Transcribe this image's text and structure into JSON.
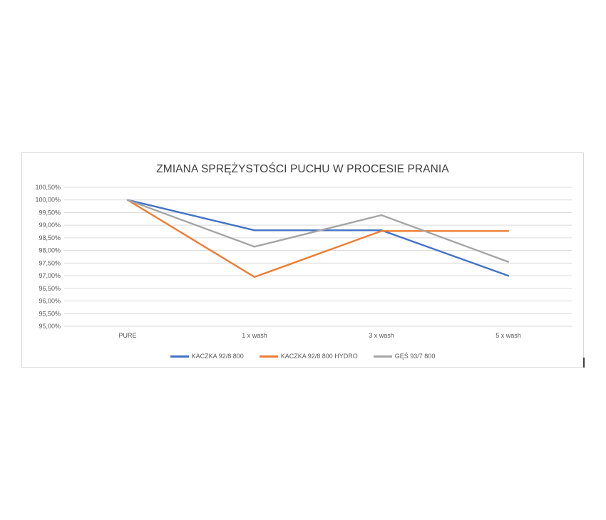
{
  "chart_data": {
    "type": "line",
    "title": "ZMIANA SPRĘŻYSTOŚCI PUCHU W PROCESIE PRANIA",
    "categories": [
      "PURE",
      "1 x wash",
      "3 x wash",
      "5 x wash"
    ],
    "ylim": [
      95.0,
      100.5
    ],
    "y_ticks": [
      100.5,
      100.0,
      99.5,
      99.0,
      98.5,
      98.0,
      97.5,
      97.0,
      96.5,
      96.0,
      95.5,
      95.0
    ],
    "y_tick_labels": [
      "100,50%",
      "100,00%",
      "99,50%",
      "99,00%",
      "98,50%",
      "98,00%",
      "97,50%",
      "97,00%",
      "96,50%",
      "96,00%",
      "95,50%",
      "95,00%"
    ],
    "grid": true,
    "legend_position": "bottom",
    "series": [
      {
        "name": "KACZKA 92/8 800",
        "color": "#4472c4",
        "values": [
          100.0,
          98.8,
          98.8,
          97.0
        ]
      },
      {
        "name": "KACZKA 92/8 800 HYDRO",
        "color": "#ed7d31",
        "values": [
          100.0,
          96.95,
          98.77,
          98.77
        ]
      },
      {
        "name": "GĘŚ 93/7 800",
        "color": "#a5a5a5",
        "values": [
          100.0,
          98.15,
          99.4,
          97.55
        ]
      }
    ]
  }
}
